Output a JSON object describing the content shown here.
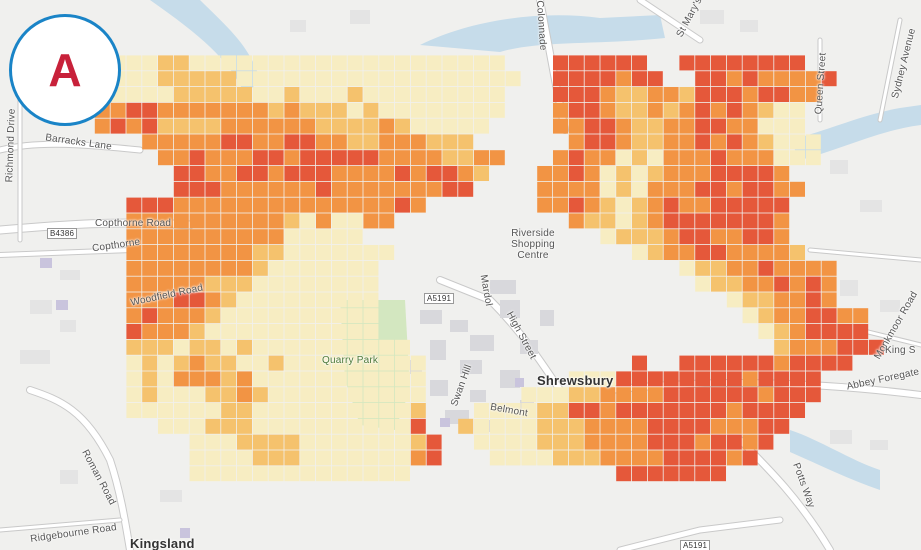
{
  "panel": {
    "letter": "A"
  },
  "colors": {
    "basemap_bg": "#f0f0ee",
    "river": "#c6dcea",
    "park": "#d3e7c0",
    "road_major": "#ffffff",
    "road_outline": "#c9c9c9",
    "heat_levels": [
      "#f7edc2",
      "#f5c26d",
      "#f29444",
      "#e5583a",
      "#cd2a50"
    ],
    "badge_border": "#1a84c7",
    "badge_letter": "#c8213a"
  },
  "heat_grid": {
    "rows": [
      "..........................................................",
      "..........................................................",
      "..........................................................",
      "......11112211111111111111111111...444444..44444444......",
      "......111122222111111111111111111..4444344..443433334.....",
      "......11111222221121112111111111...44432233244434433......",
      "......33443333333232221211111111...3443223234343211......",
      "......3434222233333322223211111....3344322334433111......",
      ".........333334433443322333222......3443223343432111......",
      "..........3343334434444433332233...34331213334333111......",
      "...........44334434443333434432...3343121233344443.......",
      "...........4443333334333333344....33331213334434433......",
      "........4443333333333333343.......3343212343344444.......",
      "........33333333332131133...........32212344444443.......",
      "........333333333311111...............122234433443.......",
      "........33333333221111111...............12334433332......",
      "........3333333321111111...................1223343333.....",
      "........3333322211111111....................122334343....",
      "........3334432111111111......................1223343.....",
      "........3433321111111111.......................12334433...",
      "........4333211111111111........................1234444..",
      "........222122121111111111.......................2333444..",
      "........1212322112111111111.............4..44444434444....",
      "........1213332311111111111.........1114444444434444......",
      "........1211122321111111111......1112233334444443444......",
      "........1111112211111111112...111122443444444434444.......",
      "..........11122211111111114..211112223333444433344........",
      "............1112222111111124..1111222333344434434.........",
      "............1111222111111134...11112223333444434..........",
      "............11111111111111.............4444444............"
    ]
  },
  "labels": {
    "richmond_drive": "Richmond Drive",
    "barracks_lane": "Barracks Lane",
    "copthorne_road": "Copthorne Road",
    "copthorne": "Copthorne",
    "b4386": "B4386",
    "woodfield_road": "Woodfield Road",
    "roman_road": "Roman Road",
    "ridgebourne_road": "Ridgebourne Road",
    "kingsland": "Kingsland",
    "quarry_park": "Quarry Park",
    "riverside_centre": "Riverside Shopping Centre",
    "mardol": "Mardol",
    "a5191_top": "A5191",
    "high_street": "High Street",
    "swan_hill": "Swan Hill",
    "belmont": "Belmont",
    "shrewsbury": "Shrewsbury",
    "abbey_foregate": "Abbey Foregate",
    "st_mary": "St Mary's",
    "colonnade": "Colonnade",
    "queen_street": "Queen Street",
    "sydney_avenue": "Sydney Avenue",
    "monkmoor_road": "Monkmoor Road",
    "king_s": "King S",
    "potts_way": "Potts Way",
    "a5191_bottom": "A5191"
  }
}
